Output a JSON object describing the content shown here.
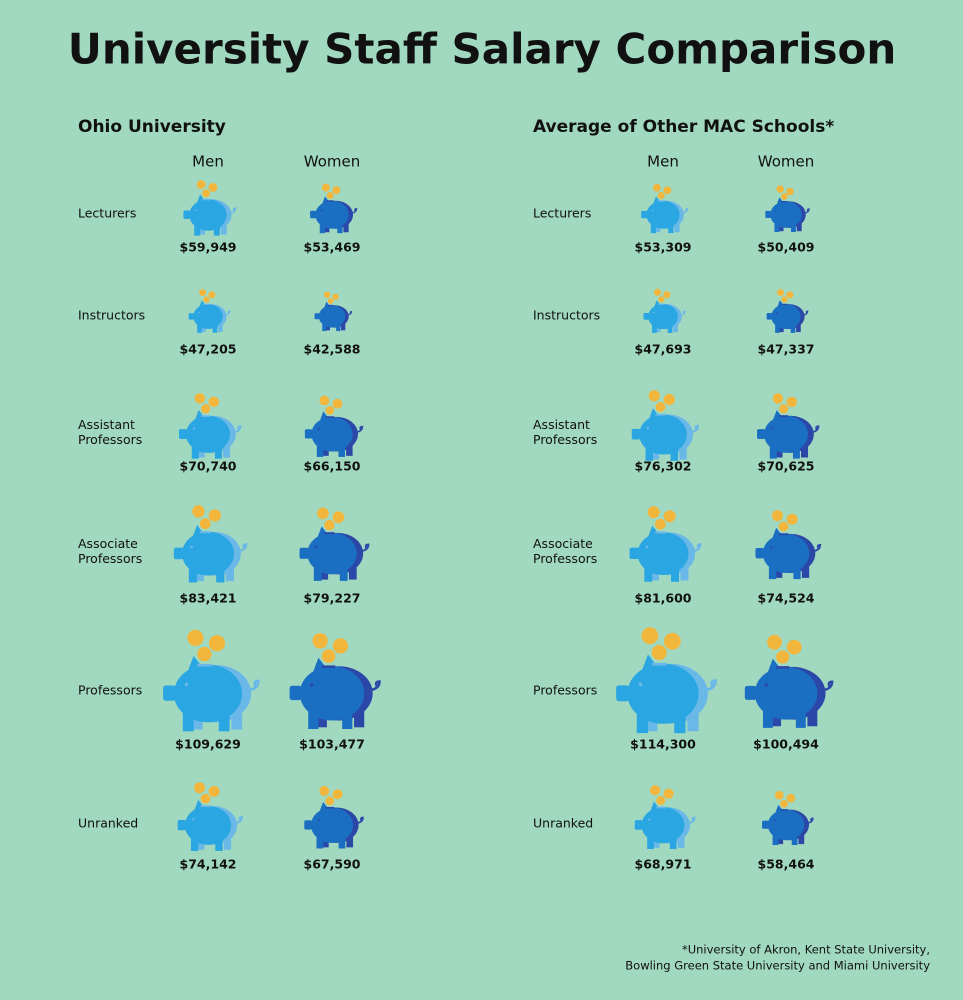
{
  "title": "University Staff Salary Comparison",
  "chart_data": [
    {
      "type": "pictograph",
      "title": "Ohio University",
      "categories": [
        "Lecturers",
        "Instructors",
        "Assistant Professors",
        "Associate Professors",
        "Professors",
        "Unranked"
      ],
      "series": [
        {
          "name": "Men",
          "color": "#2aa6e2",
          "values": [
            59949,
            47205,
            70740,
            83421,
            109629,
            74142
          ],
          "value_labels": [
            "$59,949",
            "$47,205",
            "$70,740",
            "$83,421",
            "$109,629",
            "$74,142"
          ]
        },
        {
          "name": "Women",
          "color": "#1b6fc2",
          "values": [
            53469,
            42588,
            66150,
            79227,
            103477,
            67590
          ],
          "value_labels": [
            "$53,469",
            "$42,588",
            "$66,150",
            "$79,227",
            "$103,477",
            "$67,590"
          ]
        }
      ]
    },
    {
      "type": "pictograph",
      "title": "Average of Other MAC Schools*",
      "categories": [
        "Lecturers",
        "Instructors",
        "Assistant Professors",
        "Associate Professors",
        "Professors",
        "Unranked"
      ],
      "series": [
        {
          "name": "Men",
          "color": "#2aa6e2",
          "values": [
            53309,
            47693,
            76302,
            81600,
            114300,
            68971
          ],
          "value_labels": [
            "$53,309",
            "$47,693",
            "$76,302",
            "$81,600",
            "$114,300",
            "$68,971"
          ]
        },
        {
          "name": "Women",
          "color": "#1b6fc2",
          "values": [
            50409,
            47337,
            70625,
            74524,
            100494,
            58464
          ],
          "value_labels": [
            "$50,409",
            "$47,337",
            "$70,625",
            "$74,524",
            "$100,494",
            "$58,464"
          ]
        }
      ]
    }
  ],
  "footnote": [
    "*University of Akron, Kent State University,",
    "Bowling Green State University and Miami University"
  ]
}
